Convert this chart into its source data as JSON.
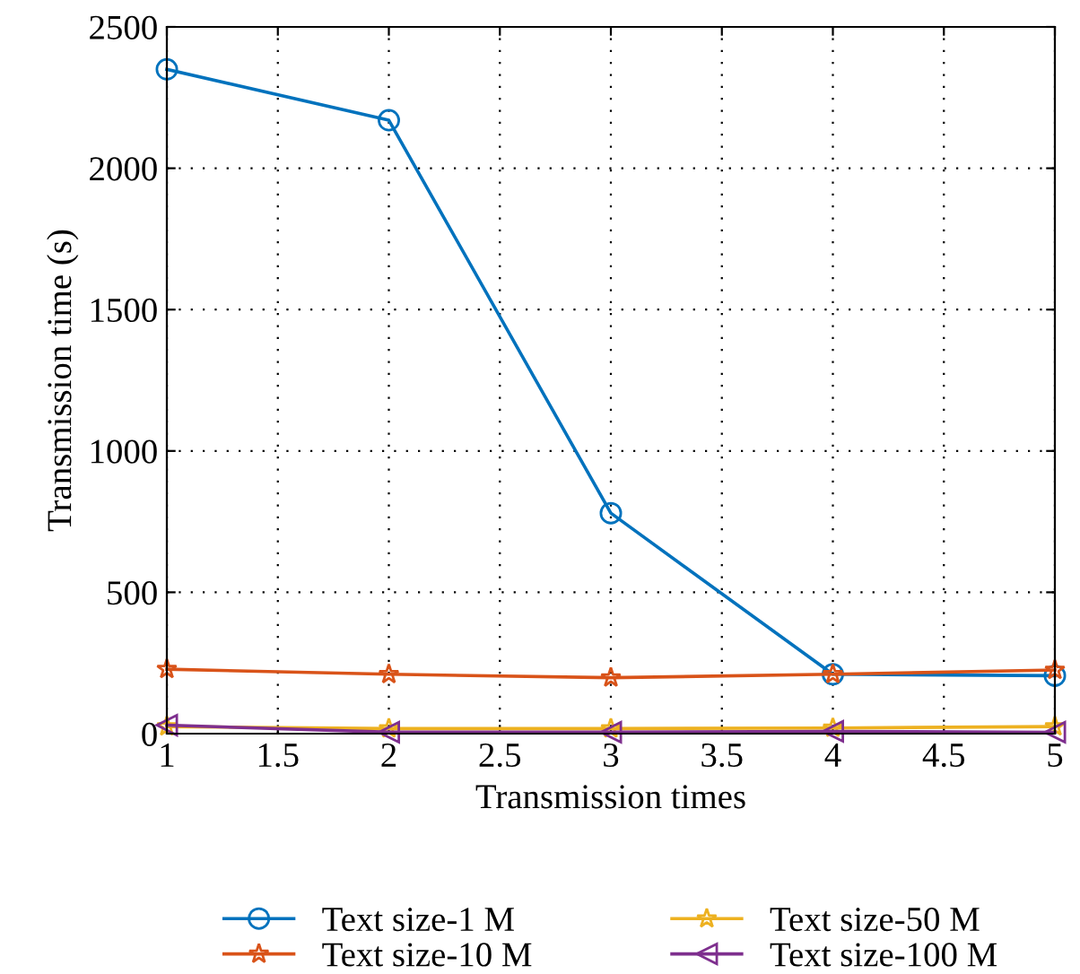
{
  "chart_data": {
    "type": "line",
    "xlabel": "Transmission times",
    "ylabel": "Transmission time (s)",
    "x": [
      1,
      2,
      3,
      4,
      5
    ],
    "series": [
      {
        "name": "Text size-1 M",
        "color": "#0072bd",
        "marker": "circle",
        "values": [
          2350,
          2170,
          780,
          210,
          205
        ]
      },
      {
        "name": "Text size-10 M",
        "color": "#d95319",
        "marker": "star",
        "values": [
          228,
          210,
          198,
          210,
          225
        ]
      },
      {
        "name": "Text size-50 M",
        "color": "#edb120",
        "marker": "star",
        "values": [
          25,
          18,
          18,
          20,
          25
        ]
      },
      {
        "name": "Text size-100 M",
        "color": "#7e2f8e",
        "marker": "triangle",
        "values": [
          30,
          5,
          5,
          8,
          5
        ]
      }
    ],
    "xlim": [
      1,
      5
    ],
    "xticks": [
      1,
      1.5,
      2,
      2.5,
      3,
      3.5,
      4,
      4.5,
      5
    ],
    "ylim": [
      0,
      2500
    ],
    "yticks": [
      0,
      500,
      1000,
      1500,
      2000,
      2500
    ],
    "grid": true,
    "legend": "bottom",
    "line_style": "solid"
  }
}
